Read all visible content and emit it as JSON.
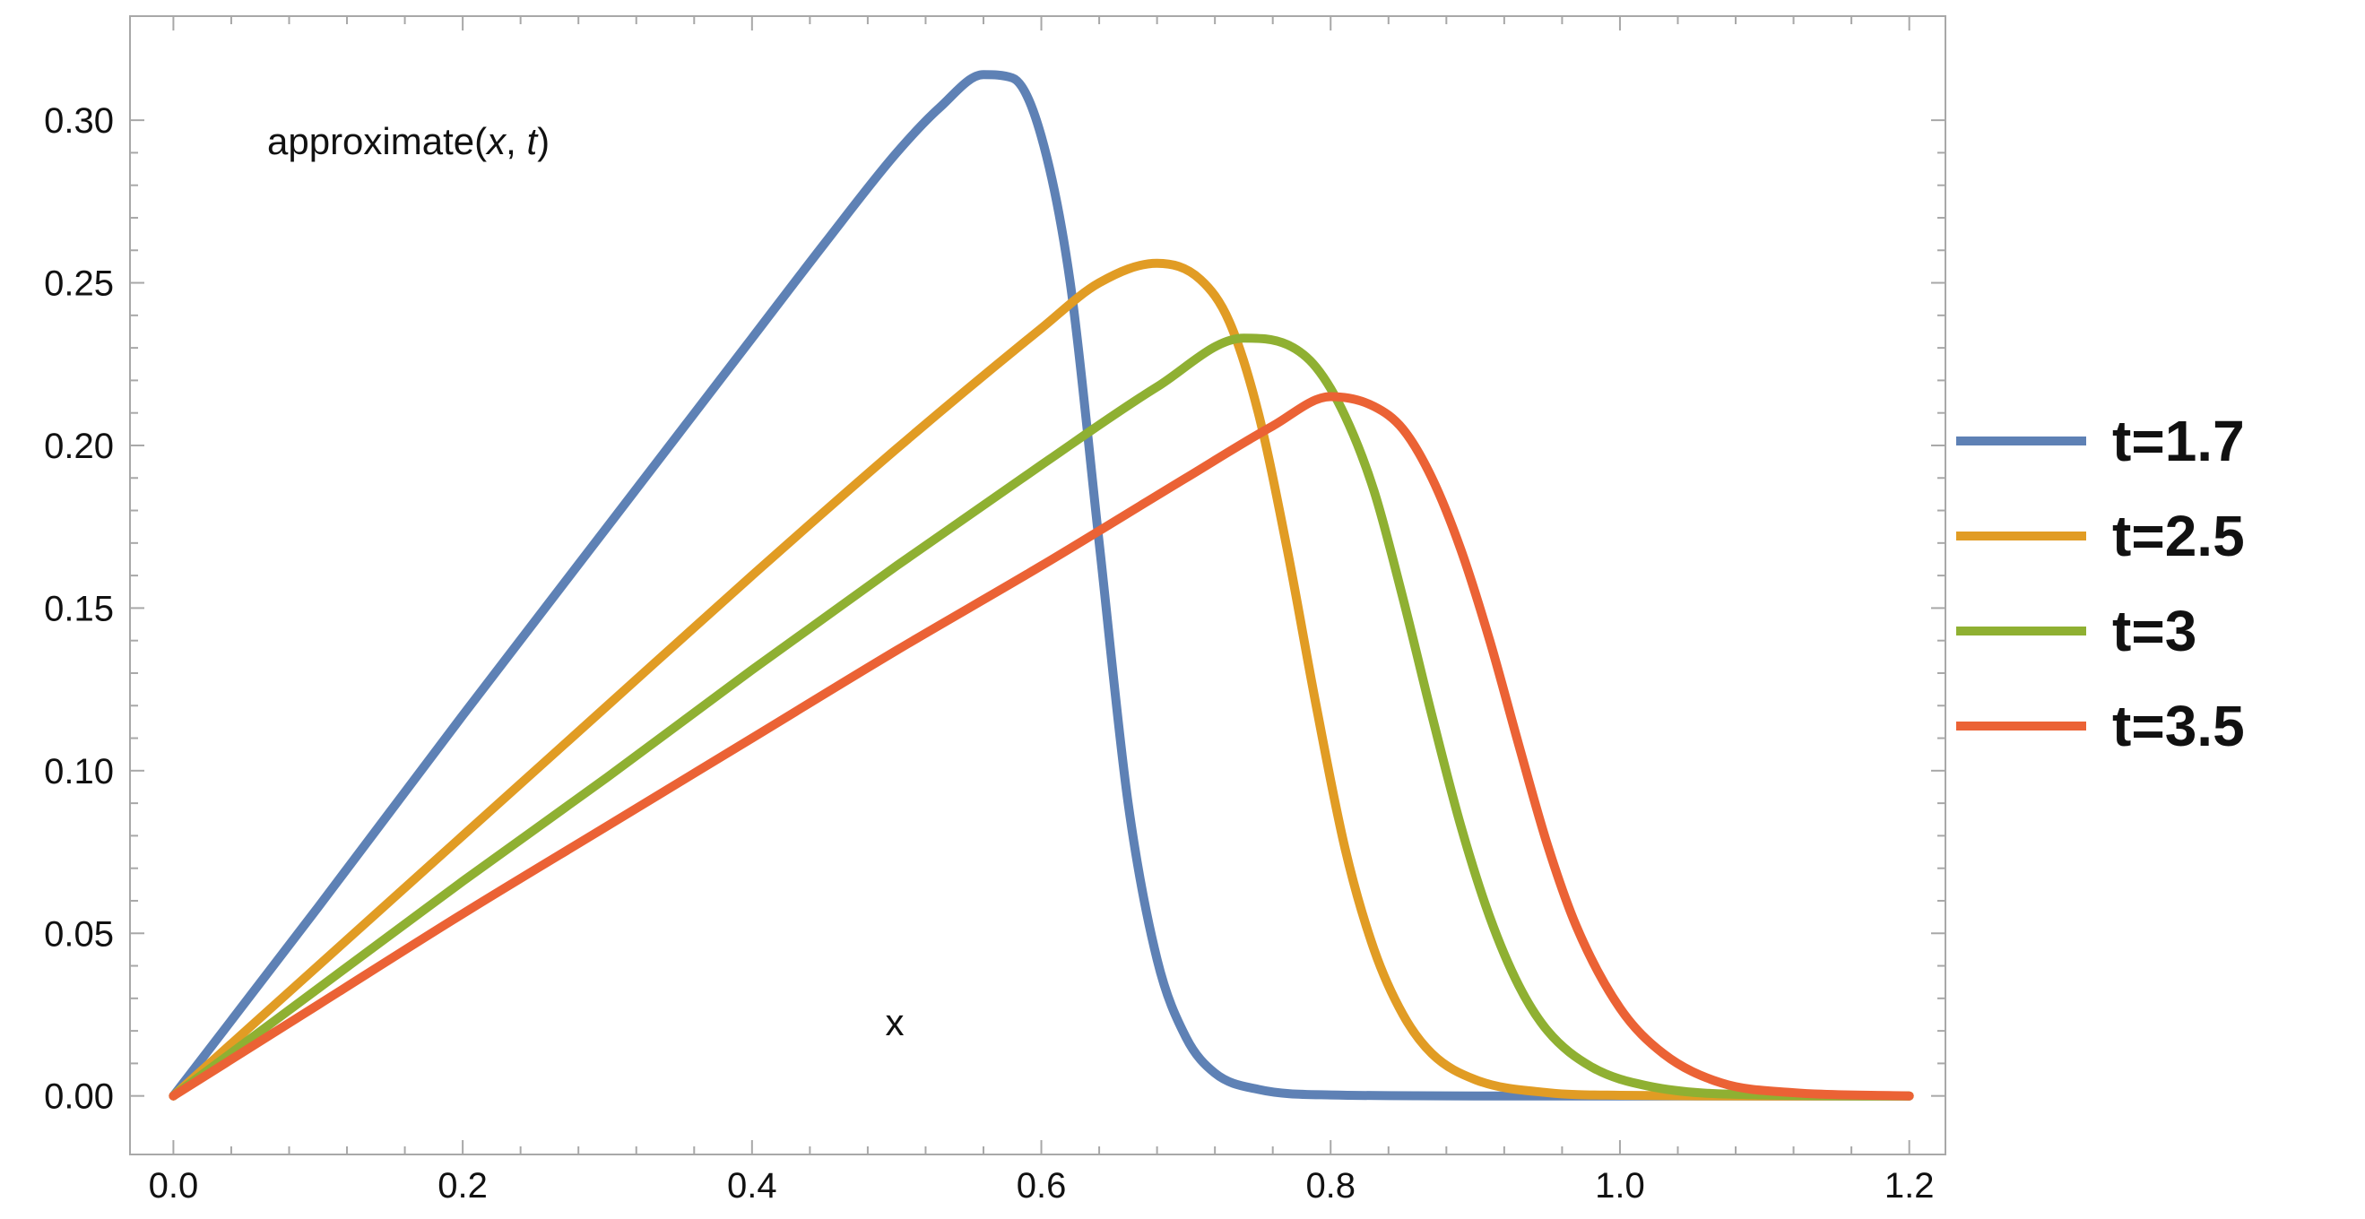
{
  "chart_data": {
    "type": "line",
    "title": "",
    "xlabel": "x",
    "ylabel": "approximate(x, t)",
    "annotations": {
      "function_name": "approximate(",
      "arg_x": "x",
      "comma": ", ",
      "arg_t": "t",
      "close": ")",
      "x_label": "x"
    },
    "xlim": [
      -0.03,
      1.225
    ],
    "ylim": [
      -0.018,
      0.332
    ],
    "x_ticks": [
      0.0,
      0.2,
      0.4,
      0.6,
      0.8,
      1.0,
      1.2
    ],
    "x_tick_labels": [
      "0.0",
      "0.2",
      "0.4",
      "0.6",
      "0.8",
      "1.0",
      "1.2"
    ],
    "y_ticks": [
      0.0,
      0.05,
      0.1,
      0.15,
      0.2,
      0.25,
      0.3
    ],
    "y_tick_labels": [
      "0.00",
      "0.05",
      "0.10",
      "0.15",
      "0.20",
      "0.25",
      "0.30"
    ],
    "grid": false,
    "legend_position": "right",
    "series": [
      {
        "name": "t=1.7",
        "color": "#5e81b5",
        "x": [
          0,
          0.1,
          0.2,
          0.3,
          0.4,
          0.45,
          0.5,
          0.53,
          0.56,
          0.58,
          0.6,
          0.62,
          0.64,
          0.66,
          0.68,
          0.7,
          0.72,
          0.75,
          0.8,
          0.9,
          1.0,
          1.1,
          1.2
        ],
        "values": [
          0,
          0.058,
          0.117,
          0.175,
          0.233,
          0.262,
          0.29,
          0.304,
          0.314,
          0.313,
          0.295,
          0.25,
          0.17,
          0.09,
          0.042,
          0.018,
          0.007,
          0.002,
          0.0003,
          0,
          0,
          0,
          0
        ]
      },
      {
        "name": "t=2.5",
        "color": "#e19c24",
        "x": [
          0,
          0.1,
          0.2,
          0.3,
          0.4,
          0.5,
          0.6,
          0.64,
          0.68,
          0.71,
          0.73,
          0.75,
          0.77,
          0.79,
          0.81,
          0.83,
          0.85,
          0.87,
          0.9,
          0.95,
          1.0,
          1.1,
          1.2
        ],
        "values": [
          0,
          0.04,
          0.08,
          0.12,
          0.16,
          0.199,
          0.236,
          0.25,
          0.256,
          0.251,
          0.238,
          0.21,
          0.168,
          0.12,
          0.076,
          0.045,
          0.025,
          0.013,
          0.005,
          0.001,
          0.0002,
          0,
          0
        ]
      },
      {
        "name": "t=3",
        "color": "#8fb032",
        "x": [
          0,
          0.1,
          0.2,
          0.3,
          0.4,
          0.5,
          0.6,
          0.68,
          0.74,
          0.77,
          0.79,
          0.81,
          0.83,
          0.85,
          0.87,
          0.89,
          0.91,
          0.93,
          0.95,
          0.98,
          1.02,
          1.1,
          1.2
        ],
        "values": [
          0,
          0.033,
          0.066,
          0.098,
          0.131,
          0.163,
          0.194,
          0.218,
          0.233,
          0.231,
          0.224,
          0.209,
          0.186,
          0.153,
          0.117,
          0.083,
          0.055,
          0.034,
          0.02,
          0.009,
          0.003,
          0.0003,
          0
        ]
      },
      {
        "name": "t=3.5",
        "color": "#eb6235",
        "x": [
          0,
          0.1,
          0.2,
          0.3,
          0.4,
          0.5,
          0.6,
          0.7,
          0.76,
          0.8,
          0.83,
          0.85,
          0.87,
          0.89,
          0.91,
          0.93,
          0.95,
          0.97,
          1.0,
          1.03,
          1.07,
          1.12,
          1.2
        ],
        "values": [
          0,
          0.028,
          0.056,
          0.083,
          0.11,
          0.137,
          0.163,
          0.19,
          0.206,
          0.215,
          0.212,
          0.205,
          0.19,
          0.168,
          0.14,
          0.108,
          0.077,
          0.052,
          0.027,
          0.013,
          0.004,
          0.001,
          0
        ]
      }
    ]
  }
}
